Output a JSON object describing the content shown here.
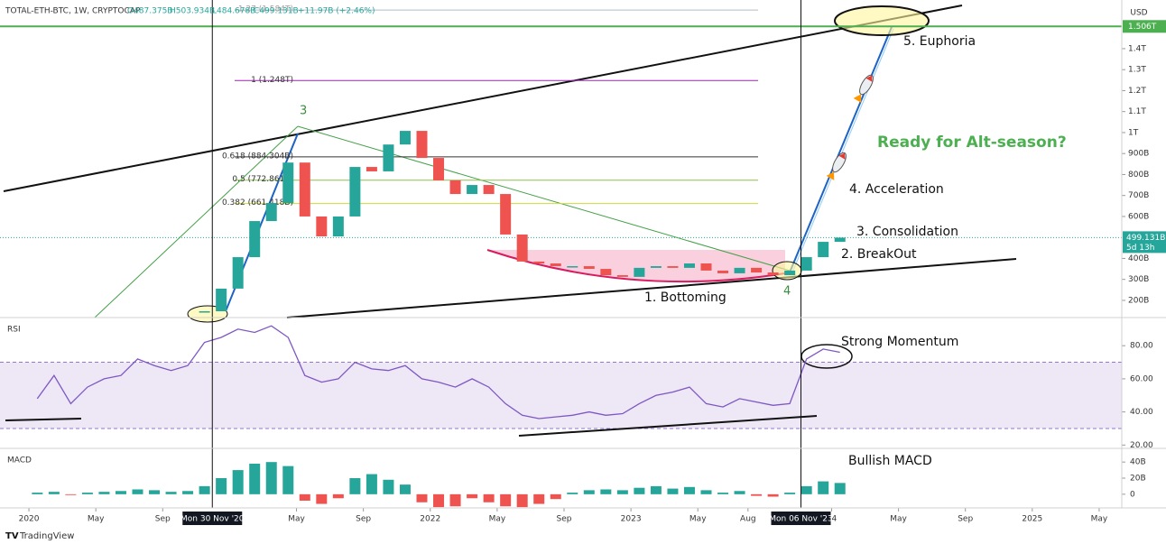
{
  "header": {
    "symbol": "TOTAL-ETH-BTC, 1W, CRYPTOCAP",
    "open": "O487.375B",
    "high": "H503.934B",
    "low": "L484.678B",
    "close": "C499.131B",
    "change": "+11.97B (+2.46%)"
  },
  "annotations": {
    "wave_3": "3",
    "wave_4": "4",
    "euphoria": "5. Euphoria",
    "question": "Ready for Alt-season?",
    "acceleration": "4. Acceleration",
    "consolidation": "3. Consolidation",
    "breakout": "2. BreakOut",
    "bottoming": "1. Bottoming",
    "momentum": "Strong Momentum",
    "macd_note": "Bullish MACD"
  },
  "footer": "TradingView",
  "chart_data": {
    "type": "candlestick",
    "currency": "USD",
    "x": [
      "2020-01",
      "2020-02",
      "2020-03",
      "2020-04",
      "2020-05",
      "2020-06",
      "2020-07",
      "2020-08",
      "2020-09",
      "2020-10",
      "2020-11",
      "2020-12",
      "2021-01",
      "2021-02",
      "2021-03",
      "2021-04",
      "2021-05",
      "2021-06",
      "2021-07",
      "2021-08",
      "2021-09",
      "2021-10",
      "2021-11",
      "2021-12",
      "2022-01",
      "2022-02",
      "2022-03",
      "2022-04",
      "2022-05",
      "2022-06",
      "2022-07",
      "2022-08",
      "2022-09",
      "2022-10",
      "2022-11",
      "2022-12",
      "2023-01",
      "2023-02",
      "2023-03",
      "2023-04",
      "2023-05",
      "2023-06",
      "2023-07",
      "2023-08",
      "2023-09",
      "2023-10",
      "2023-11",
      "2023-12",
      "2024-01"
    ],
    "xlim": [
      "2019-11",
      "2025-07"
    ],
    "xticks": [
      {
        "value": "2020-01",
        "label": "2020"
      },
      {
        "value": "2020-05",
        "label": "May"
      },
      {
        "value": "2020-09",
        "label": "Sep"
      },
      {
        "value": "2021-05",
        "label": "May"
      },
      {
        "value": "2021-09",
        "label": "Sep"
      },
      {
        "value": "2022-01",
        "label": "2022"
      },
      {
        "value": "2022-05",
        "label": "May"
      },
      {
        "value": "2022-09",
        "label": "Sep"
      },
      {
        "value": "2023-01",
        "label": "2023"
      },
      {
        "value": "2023-05",
        "label": "May"
      },
      {
        "value": "2023-08",
        "label": "Aug"
      },
      {
        "value": "2024-01",
        "label": "24"
      },
      {
        "value": "2024-05",
        "label": "May"
      },
      {
        "value": "2024-09",
        "label": "Sep"
      },
      {
        "value": "2025-01",
        "label": "2025"
      },
      {
        "value": "2025-05",
        "label": "May"
      }
    ],
    "crosshair_dates": [
      {
        "value": "2020-11-30",
        "label": "Mon 30 Nov '20"
      },
      {
        "value": "2023-11-06",
        "label": "Mon 06 Nov '23"
      }
    ],
    "ylim": [
      118,
      1632
    ],
    "yticks": [
      {
        "value": 200,
        "label": "200B"
      },
      {
        "value": 300,
        "label": "300B"
      },
      {
        "value": 400,
        "label": "400B"
      },
      {
        "value": 600,
        "label": "600B"
      },
      {
        "value": 700,
        "label": "700B"
      },
      {
        "value": 800,
        "label": "800B"
      },
      {
        "value": 900,
        "label": "900B"
      },
      {
        "value": 1000,
        "label": "1T"
      },
      {
        "value": 1100,
        "label": "1.1T"
      },
      {
        "value": 1200,
        "label": "1.2T"
      },
      {
        "value": 1300,
        "label": "1.3T"
      },
      {
        "value": 1400,
        "label": "1.4T"
      }
    ],
    "price": {
      "up_color": "#26a69a",
      "down_color": "#ef5350",
      "values": [
        null,
        null,
        null,
        null,
        null,
        null,
        null,
        null,
        null,
        null,
        148,
        256,
        406,
        578,
        664,
        857,
        600,
        505,
        600,
        836,
        815,
        943,
        1008,
        879,
        772,
        707,
        750,
        707,
        514,
        385,
        376,
        363,
        363,
        350,
        320,
        312,
        355,
        363,
        355,
        376,
        342,
        329,
        355,
        333,
        320,
        342,
        406,
        479,
        499.131
      ]
    },
    "last_price": {
      "value": 499.131,
      "label": "499.131B",
      "countdown": "5d 13h",
      "color": "#26a69a"
    },
    "target": {
      "value": 1506,
      "label": "1.506T",
      "color": "#4caf50"
    },
    "fib_levels": [
      {
        "value": 1584,
        "label": "1.27 (1.584T)",
        "color": "#b0bec5"
      },
      {
        "value": 1248,
        "label": "1 (1.248T)",
        "color": "#9c27b0"
      },
      {
        "value": 884.304,
        "label": "0.618 (884.304B)",
        "color": "#333333"
      },
      {
        "value": 772.861,
        "label": "0.5 (772.861B)",
        "color": "#8bc34a"
      },
      {
        "value": 661.418,
        "label": "0.382 (661.418B)",
        "color": "#cddc39"
      }
    ],
    "rsi": {
      "title": "RSI",
      "color": "#7e57c2",
      "band": [
        30,
        70
      ],
      "ylim": [
        18,
        97
      ],
      "yticks": [
        {
          "value": 80,
          "label": "80.00"
        },
        {
          "value": 60,
          "label": "60.00"
        },
        {
          "value": 40,
          "label": "40.00"
        },
        {
          "value": 20,
          "label": "20.00"
        }
      ],
      "values": [
        48,
        62,
        45,
        55,
        60,
        62,
        72,
        68,
        65,
        68,
        82,
        85,
        90,
        88,
        92,
        85,
        62,
        58,
        60,
        70,
        66,
        65,
        68,
        60,
        58,
        55,
        60,
        55,
        45,
        38,
        36,
        37,
        38,
        40,
        38,
        39,
        45,
        50,
        52,
        55,
        45,
        43,
        48,
        46,
        44,
        45,
        72,
        78,
        76
      ]
    },
    "macd": {
      "title": "MACD",
      "up_color": "#26a69a",
      "down_color": "#ef5350",
      "ylim": [
        -17,
        57
      ],
      "yticks": [
        {
          "value": 40,
          "label": "40B"
        },
        {
          "value": 20,
          "label": "20B"
        },
        0
      ],
      "values": [
        2,
        3,
        -1,
        2,
        3,
        4,
        6,
        5,
        3,
        4,
        10,
        20,
        30,
        38,
        40,
        35,
        -8,
        -12,
        -5,
        20,
        25,
        18,
        12,
        -10,
        -16,
        -15,
        -5,
        -10,
        -15,
        -16,
        -12,
        -6,
        2,
        5,
        6,
        5,
        8,
        10,
        7,
        9,
        5,
        2,
        4,
        -2,
        -3,
        2,
        10,
        16,
        14
      ]
    }
  }
}
